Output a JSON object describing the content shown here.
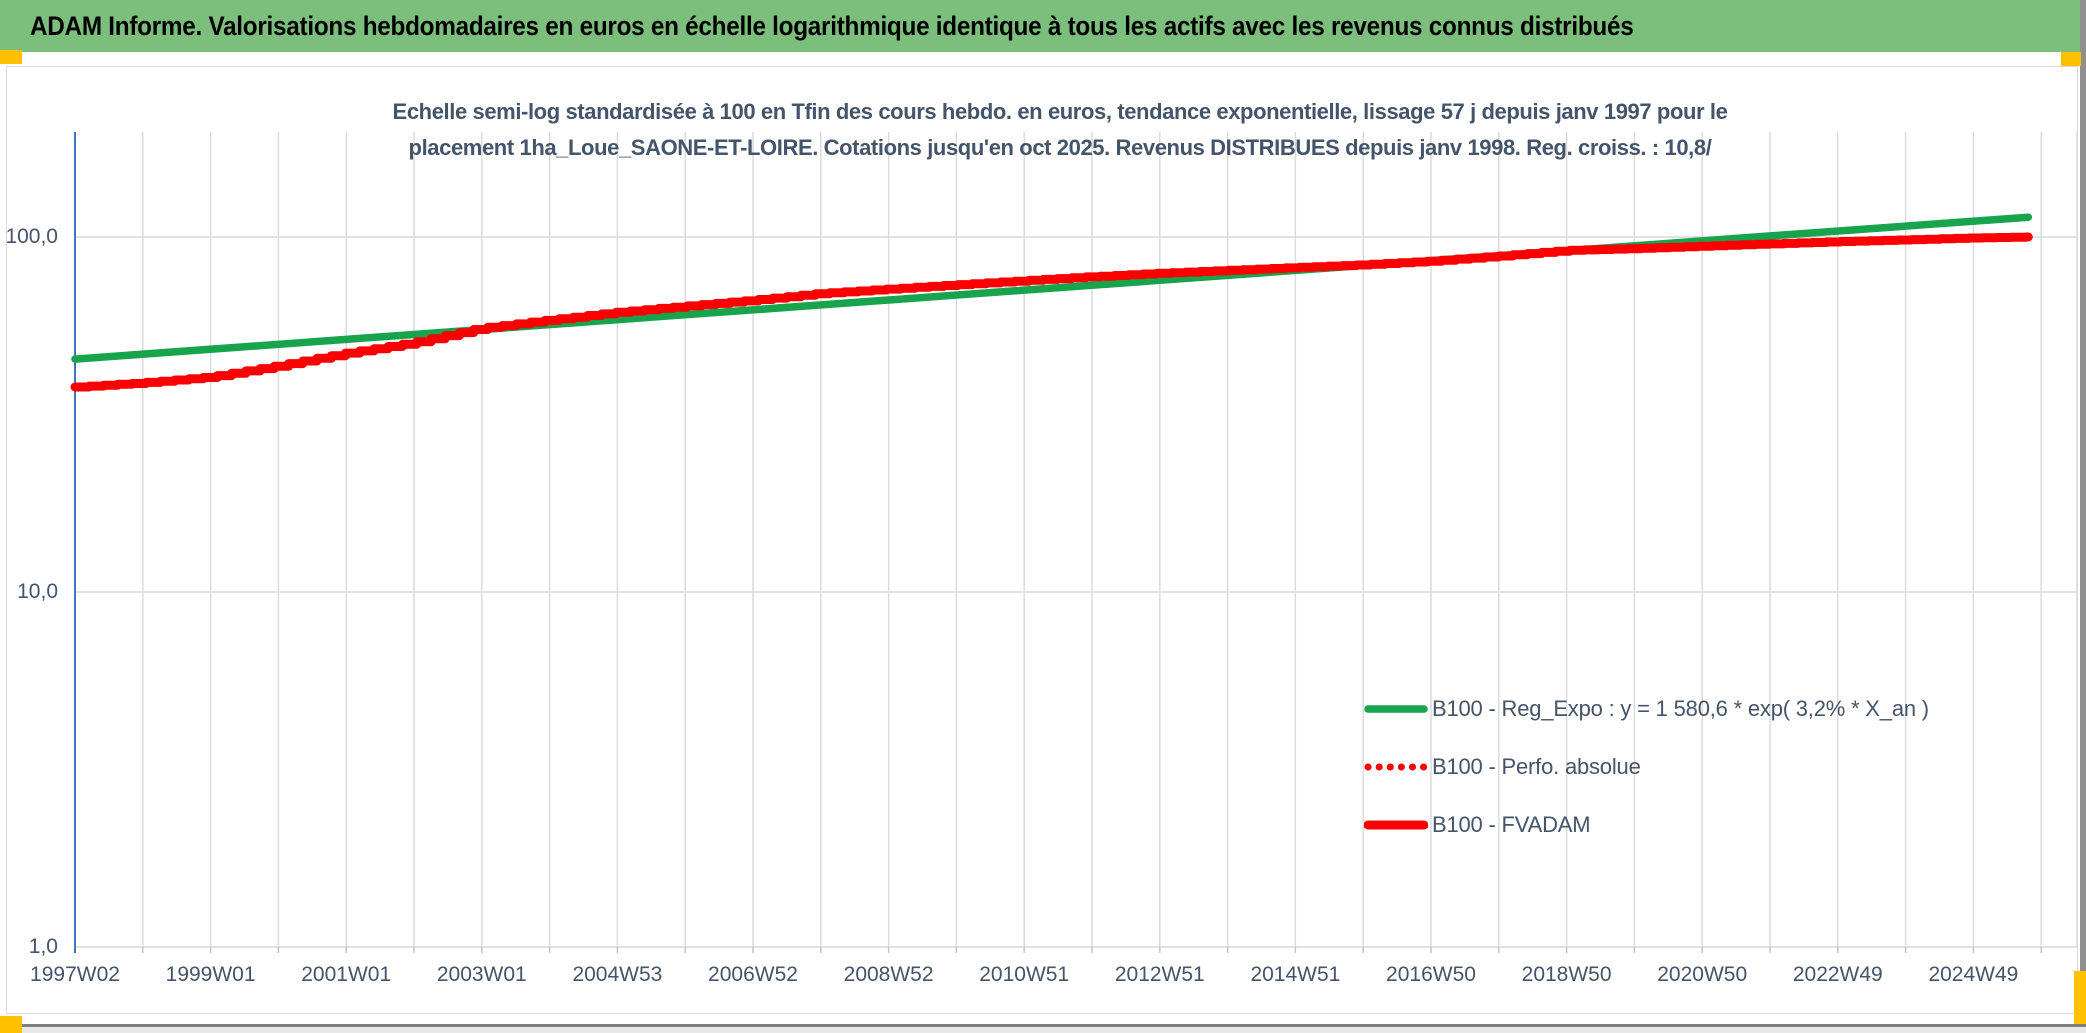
{
  "header": {
    "title": "ADAM Informe. Valorisations hebdomadaires en euros en échelle logarithmique identique à tous les actifs avec les revenus connus distribués"
  },
  "colors": {
    "header_bg": "#7cbe7c",
    "accent_amber": "#ffc000",
    "grid": "#d9d9d9",
    "tick": "#bfbfbf",
    "axis_blue": "#4472c4",
    "text_dark": "#44546A",
    "series_green": "#17a44c",
    "series_red": "#fa0000"
  },
  "chart_data": {
    "type": "line",
    "title_line1": "Echelle semi-log standardisée à 100 en Tfin des cours hebdo. en euros, tendance exponentielle, lissage 57 j depuis janv 1997 pour le",
    "title_line2": "placement 1ha_Loue_SAONE-ET-LOIRE. Cotations jusqu'en oct 2025. Revenus DISTRIBUES depuis janv 1998. Reg. croiss. : 10,8/",
    "y_axis": {
      "scale": "log",
      "ylim": [
        1,
        200
      ],
      "ticks": [
        {
          "label": "100,0",
          "value": 100
        },
        {
          "label": "10,0",
          "value": 10
        },
        {
          "label": "1,0",
          "value": 1
        }
      ]
    },
    "x_axis": {
      "start_year": 1997.04,
      "end_year": 2025.85,
      "tick_labels": [
        "1997W02",
        "1999W01",
        "2001W01",
        "2003W01",
        "2004W53",
        "2006W52",
        "2008W52",
        "2010W51",
        "2012W51",
        "2014W51",
        "2016W50",
        "2018W50",
        "2020W50",
        "2022W49",
        "2024W49"
      ]
    },
    "grid": "vertical yearly + horizontal log decades",
    "legend_position": "inside-right-lower",
    "series": [
      {
        "name": "B100 - Reg_Expo : y = 1 580,6 * exp( 3,2% *  X_an )",
        "color": "#17a44c",
        "style": "solid",
        "width": 7.5,
        "render": "linear",
        "points": [
          [
            1997.04,
            45.3
          ],
          [
            2025.85,
            113.7
          ]
        ]
      },
      {
        "name": "B100 - Perfo. absolue",
        "color": "#fa0000",
        "style": "dotted",
        "width": 7,
        "render": "step",
        "points": [
          [
            1997.04,
            37.8
          ],
          [
            1998,
            38.8
          ],
          [
            1999,
            40.3
          ],
          [
            2000,
            43.3
          ],
          [
            2001,
            47.0
          ],
          [
            2002,
            50.3
          ],
          [
            2003,
            55.3
          ],
          [
            2004,
            58.3
          ],
          [
            2005,
            61.3
          ],
          [
            2006,
            63.8
          ],
          [
            2007,
            66.3
          ],
          [
            2008,
            69.3
          ],
          [
            2009,
            71.3
          ],
          [
            2010,
            73.3
          ],
          [
            2011,
            75.3
          ],
          [
            2012,
            77.3
          ],
          [
            2013,
            79.0
          ],
          [
            2014,
            80.5
          ],
          [
            2015,
            82.0
          ],
          [
            2016,
            83.5
          ],
          [
            2017,
            85.5
          ],
          [
            2018,
            88.3
          ],
          [
            2019,
            91.6
          ],
          [
            2020,
            92.8
          ],
          [
            2021,
            94.2
          ],
          [
            2022,
            95.6
          ],
          [
            2023,
            97.0
          ],
          [
            2024,
            98.2
          ],
          [
            2025,
            99.4
          ],
          [
            2025.85,
            100.0
          ]
        ]
      },
      {
        "name": "B100 - FVADAM",
        "color": "#fa0000",
        "style": "solid",
        "width": 9,
        "render": "step",
        "points": [
          [
            1997.04,
            37.8
          ],
          [
            1998,
            38.8
          ],
          [
            1999,
            40.3
          ],
          [
            2000,
            43.3
          ],
          [
            2001,
            47.0
          ],
          [
            2002,
            50.3
          ],
          [
            2003,
            55.3
          ],
          [
            2004,
            58.3
          ],
          [
            2005,
            61.3
          ],
          [
            2006,
            63.8
          ],
          [
            2007,
            66.3
          ],
          [
            2008,
            69.3
          ],
          [
            2009,
            71.3
          ],
          [
            2010,
            73.3
          ],
          [
            2011,
            75.3
          ],
          [
            2012,
            77.3
          ],
          [
            2013,
            79.0
          ],
          [
            2014,
            80.5
          ],
          [
            2015,
            82.0
          ],
          [
            2016,
            83.5
          ],
          [
            2017,
            85.5
          ],
          [
            2018,
            88.3
          ],
          [
            2019,
            91.6
          ],
          [
            2020,
            92.8
          ],
          [
            2021,
            94.2
          ],
          [
            2022,
            95.6
          ],
          [
            2023,
            97.0
          ],
          [
            2024,
            98.2
          ],
          [
            2025,
            99.4
          ],
          [
            2025.85,
            100.0
          ]
        ]
      }
    ]
  }
}
